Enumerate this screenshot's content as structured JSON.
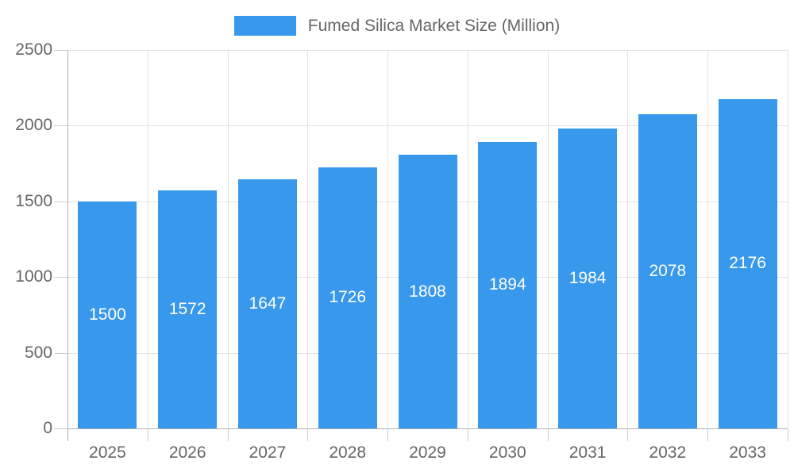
{
  "chart_data": {
    "type": "bar",
    "title": "Fumed Silica Market Size (Million)",
    "legend": [
      "Fumed Silica Market Size (Million)"
    ],
    "legend_position": "top",
    "categories": [
      "2025",
      "2026",
      "2027",
      "2028",
      "2029",
      "2030",
      "2031",
      "2032",
      "2033"
    ],
    "values": [
      1500,
      1572,
      1647,
      1726,
      1808,
      1894,
      1984,
      2078,
      2176
    ],
    "xlabel": "",
    "ylabel": "",
    "ylim": [
      0,
      2500
    ],
    "yticks": [
      0,
      500,
      1000,
      1500,
      2000,
      2500
    ],
    "grid": true,
    "bar_value_labels_shown": true,
    "colors": {
      "bar": "#3898EC",
      "bar_value_text": "#ffffff",
      "axis_text": "#666666",
      "legend_text": "#666666",
      "grid_line": "#e3e3e3",
      "axis_line": "#b1b1b1",
      "tick_line": "#cccccc",
      "background": "#ffffff"
    }
  }
}
